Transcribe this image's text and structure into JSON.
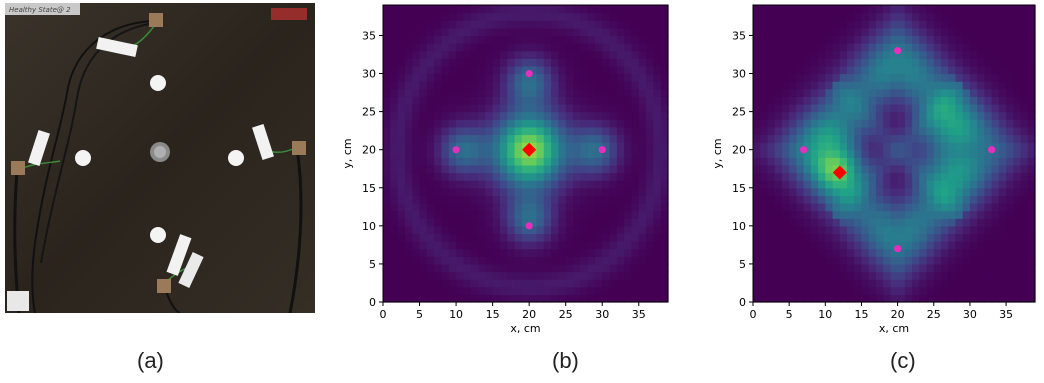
{
  "captions": {
    "a": "(a)",
    "b": "(b)",
    "c": "(c)"
  },
  "photo": {
    "overlay_label": "Healthy State@ 2"
  },
  "colors": {
    "background": "#440154",
    "sensor": "#e52fbf",
    "source": "#ff0000",
    "panel_photo": "#2d271f"
  },
  "chart_data": [
    {
      "type": "heatmap",
      "title": "",
      "xlabel": "x, cm",
      "ylabel": "y, cm",
      "xlim": [
        0,
        39
      ],
      "ylim": [
        0,
        39
      ],
      "xticks": [
        "0",
        "5",
        "10",
        "15",
        "20",
        "25",
        "30",
        "35"
      ],
      "yticks": [
        "0",
        "5",
        "10",
        "15",
        "20",
        "25",
        "30",
        "35"
      ],
      "sensors": [
        [
          20,
          30
        ],
        [
          10,
          20
        ],
        [
          30,
          20
        ],
        [
          20,
          10
        ]
      ],
      "source": [
        20,
        20
      ]
    },
    {
      "type": "heatmap",
      "title": "",
      "xlabel": "x, cm",
      "ylabel": "y, cm",
      "xlim": [
        0,
        39
      ],
      "ylim": [
        0,
        39
      ],
      "xticks": [
        "0",
        "5",
        "10",
        "15",
        "20",
        "25",
        "30",
        "35"
      ],
      "yticks": [
        "0",
        "5",
        "10",
        "15",
        "20",
        "25",
        "30",
        "35"
      ],
      "sensors": [
        [
          20,
          33
        ],
        [
          7,
          20
        ],
        [
          33,
          20
        ],
        [
          20,
          7
        ]
      ],
      "source": [
        12,
        17
      ]
    }
  ]
}
